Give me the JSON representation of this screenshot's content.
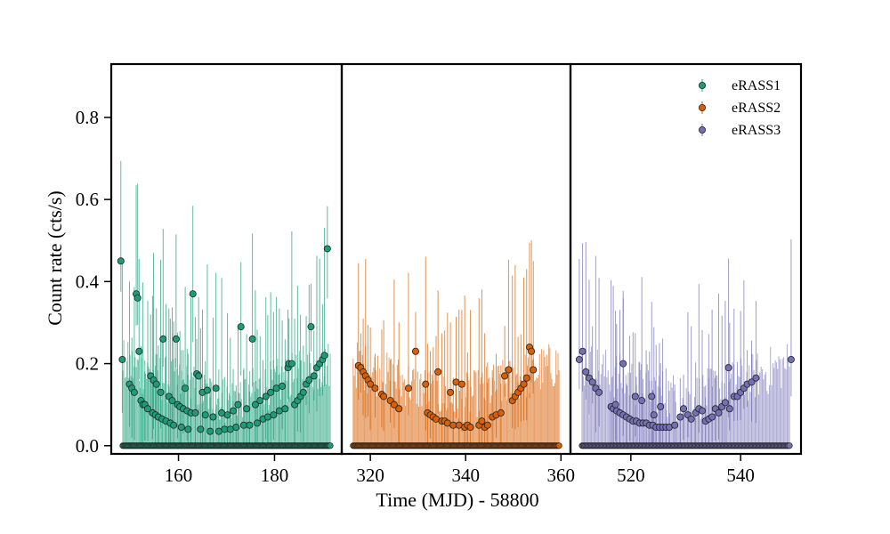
{
  "chart_data": {
    "type": "scatter",
    "xlabel": "Time (MJD) - 58800",
    "ylabel": "Count rate (cts/s)",
    "ylim": [
      -0.02,
      0.93
    ],
    "y_ticks": [
      0.0,
      0.2,
      0.4,
      0.6,
      0.8
    ],
    "y_tick_labels": [
      "0.0",
      "0.2",
      "0.4",
      "0.6",
      "0.8"
    ],
    "grid": false,
    "legend_position": "top-right",
    "panels": [
      {
        "series": "eRASS1",
        "color": "#1b9e77",
        "xlim": [
          146.0,
          194.0
        ],
        "x_ticks": [
          160,
          180
        ],
        "x_tick_labels": [
          "160",
          "180"
        ],
        "points": [
          [
            148.0,
            0.45
          ],
          [
            148.3,
            0.21
          ],
          [
            149.8,
            0.15
          ],
          [
            150.3,
            0.14
          ],
          [
            150.8,
            0.13
          ],
          [
            151.2,
            0.37
          ],
          [
            151.5,
            0.36
          ],
          [
            151.8,
            0.23
          ],
          [
            152.2,
            0.11
          ],
          [
            152.6,
            0.1
          ],
          [
            153.0,
            0.1
          ],
          [
            153.6,
            0.09
          ],
          [
            154.2,
            0.17
          ],
          [
            154.8,
            0.16
          ],
          [
            155.4,
            0.15
          ],
          [
            154.6,
            0.08
          ],
          [
            155.2,
            0.075
          ],
          [
            155.8,
            0.07
          ],
          [
            156.3,
            0.13
          ],
          [
            156.8,
            0.26
          ],
          [
            156.6,
            0.065
          ],
          [
            157.4,
            0.06
          ],
          [
            158.0,
            0.12
          ],
          [
            158.3,
            0.055
          ],
          [
            158.7,
            0.11
          ],
          [
            159.0,
            0.05
          ],
          [
            159.5,
            0.26
          ],
          [
            159.8,
            0.1
          ],
          [
            160.3,
            0.095
          ],
          [
            160.6,
            0.045
          ],
          [
            161.0,
            0.09
          ],
          [
            161.4,
            0.14
          ],
          [
            161.8,
            0.085
          ],
          [
            162.0,
            0.04
          ],
          [
            162.6,
            0.08
          ],
          [
            163.0,
            0.37
          ],
          [
            163.5,
            0.08
          ],
          [
            163.8,
            0.175
          ],
          [
            164.2,
            0.17
          ],
          [
            164.6,
            0.04
          ],
          [
            165.0,
            0.13
          ],
          [
            165.6,
            0.075
          ],
          [
            166.0,
            0.135
          ],
          [
            166.6,
            0.035
          ],
          [
            167.2,
            0.07
          ],
          [
            167.8,
            0.14
          ],
          [
            168.4,
            0.035
          ],
          [
            169.0,
            0.08
          ],
          [
            169.6,
            0.04
          ],
          [
            170.2,
            0.075
          ],
          [
            170.8,
            0.04
          ],
          [
            171.4,
            0.085
          ],
          [
            172.0,
            0.045
          ],
          [
            172.4,
            0.1
          ],
          [
            173.0,
            0.29
          ],
          [
            173.6,
            0.05
          ],
          [
            174.2,
            0.09
          ],
          [
            174.8,
            0.05
          ],
          [
            175.4,
            0.26
          ],
          [
            176.0,
            0.1
          ],
          [
            176.4,
            0.055
          ],
          [
            177.0,
            0.11
          ],
          [
            177.6,
            0.065
          ],
          [
            178.2,
            0.12
          ],
          [
            178.6,
            0.07
          ],
          [
            179.2,
            0.13
          ],
          [
            179.8,
            0.075
          ],
          [
            180.4,
            0.14
          ],
          [
            181.0,
            0.085
          ],
          [
            181.6,
            0.145
          ],
          [
            182.2,
            0.09
          ],
          [
            182.8,
            0.19
          ],
          [
            183.0,
            0.2
          ],
          [
            183.6,
            0.2
          ],
          [
            184.2,
            0.1
          ],
          [
            184.8,
            0.11
          ],
          [
            185.4,
            0.12
          ],
          [
            186.0,
            0.13
          ],
          [
            186.6,
            0.15
          ],
          [
            187.2,
            0.16
          ],
          [
            187.6,
            0.29
          ],
          [
            188.2,
            0.17
          ],
          [
            188.8,
            0.19
          ],
          [
            189.4,
            0.2
          ],
          [
            190.0,
            0.21
          ],
          [
            190.4,
            0.22
          ],
          [
            191.0,
            0.48
          ]
        ]
      },
      {
        "series": "eRASS2",
        "color": "#d95f02",
        "xlim": [
          314.0,
          362.0
        ],
        "x_ticks": [
          320,
          340,
          360
        ],
        "x_tick_labels": [
          "320",
          "340",
          "360"
        ],
        "points": [
          [
            317.5,
            0.195
          ],
          [
            318.0,
            0.19
          ],
          [
            318.5,
            0.18
          ],
          [
            319.0,
            0.17
          ],
          [
            319.5,
            0.16
          ],
          [
            320.0,
            0.15
          ],
          [
            321.0,
            0.14
          ],
          [
            322.4,
            0.125
          ],
          [
            322.8,
            0.12
          ],
          [
            324.2,
            0.11
          ],
          [
            325.0,
            0.1
          ],
          [
            326.0,
            0.09
          ],
          [
            328.0,
            0.14
          ],
          [
            329.5,
            0.23
          ],
          [
            331.6,
            0.15
          ],
          [
            332.0,
            0.08
          ],
          [
            332.6,
            0.075
          ],
          [
            333.2,
            0.07
          ],
          [
            333.8,
            0.065
          ],
          [
            334.2,
            0.18
          ],
          [
            335.0,
            0.06
          ],
          [
            335.6,
            0.06
          ],
          [
            336.2,
            0.055
          ],
          [
            336.8,
            0.13
          ],
          [
            337.4,
            0.05
          ],
          [
            338.0,
            0.155
          ],
          [
            338.6,
            0.05
          ],
          [
            339.2,
            0.15
          ],
          [
            339.8,
            0.045
          ],
          [
            340.4,
            0.05
          ],
          [
            341.0,
            0.045
          ],
          [
            342.8,
            0.05
          ],
          [
            343.4,
            0.06
          ],
          [
            344.0,
            0.045
          ],
          [
            344.6,
            0.05
          ],
          [
            345.6,
            0.07
          ],
          [
            346.4,
            0.075
          ],
          [
            347.4,
            0.08
          ],
          [
            348.2,
            0.17
          ],
          [
            349.0,
            0.185
          ],
          [
            349.8,
            0.11
          ],
          [
            350.4,
            0.12
          ],
          [
            351.0,
            0.13
          ],
          [
            351.6,
            0.14
          ],
          [
            352.2,
            0.15
          ],
          [
            352.8,
            0.165
          ],
          [
            353.4,
            0.24
          ],
          [
            353.8,
            0.23
          ],
          [
            354.2,
            0.185
          ]
        ]
      },
      {
        "series": "eRASS3",
        "color": "#7570b3",
        "xlim": [
          509.0,
          551.0
        ],
        "x_ticks": [
          520,
          540
        ],
        "x_tick_labels": [
          "520",
          "540"
        ],
        "points": [
          [
            510.6,
            0.21
          ],
          [
            511.2,
            0.23
          ],
          [
            511.8,
            0.18
          ],
          [
            512.4,
            0.165
          ],
          [
            513.0,
            0.155
          ],
          [
            513.6,
            0.14
          ],
          [
            514.2,
            0.13
          ],
          [
            516.4,
            0.095
          ],
          [
            516.8,
            0.09
          ],
          [
            517.4,
            0.085
          ],
          [
            518.0,
            0.08
          ],
          [
            518.6,
            0.075
          ],
          [
            519.2,
            0.07
          ],
          [
            519.8,
            0.065
          ],
          [
            520.4,
            0.06
          ],
          [
            521.0,
            0.06
          ],
          [
            521.6,
            0.055
          ],
          [
            522.2,
            0.055
          ],
          [
            522.8,
            0.055
          ],
          [
            523.4,
            0.05
          ],
          [
            524.0,
            0.05
          ],
          [
            524.6,
            0.045
          ],
          [
            525.2,
            0.045
          ],
          [
            525.8,
            0.045
          ],
          [
            526.4,
            0.045
          ],
          [
            517.2,
            0.1
          ],
          [
            518.6,
            0.2
          ],
          [
            520.8,
            0.12
          ],
          [
            522.0,
            0.11
          ],
          [
            523.8,
            0.12
          ],
          [
            524.2,
            0.075
          ],
          [
            525.4,
            0.095
          ],
          [
            527.0,
            0.045
          ],
          [
            528.0,
            0.05
          ],
          [
            529.0,
            0.07
          ],
          [
            529.6,
            0.09
          ],
          [
            530.4,
            0.075
          ],
          [
            531.0,
            0.065
          ],
          [
            531.8,
            0.08
          ],
          [
            532.4,
            0.09
          ],
          [
            533.0,
            0.085
          ],
          [
            533.6,
            0.06
          ],
          [
            534.2,
            0.065
          ],
          [
            534.8,
            0.07
          ],
          [
            535.4,
            0.09
          ],
          [
            536.0,
            0.08
          ],
          [
            536.6,
            0.095
          ],
          [
            537.2,
            0.105
          ],
          [
            537.8,
            0.19
          ],
          [
            538.0,
            0.09
          ],
          [
            538.8,
            0.12
          ],
          [
            539.4,
            0.12
          ],
          [
            540.0,
            0.13
          ],
          [
            540.6,
            0.14
          ],
          [
            541.2,
            0.15
          ],
          [
            542.0,
            0.155
          ],
          [
            542.8,
            0.165
          ],
          [
            549.2,
            0.21
          ]
        ]
      }
    ],
    "legend": [
      {
        "label": "eRASS1",
        "color": "#1b9e77"
      },
      {
        "label": "eRASS2",
        "color": "#d95f02"
      },
      {
        "label": "eRASS3",
        "color": "#7570b3"
      }
    ]
  }
}
